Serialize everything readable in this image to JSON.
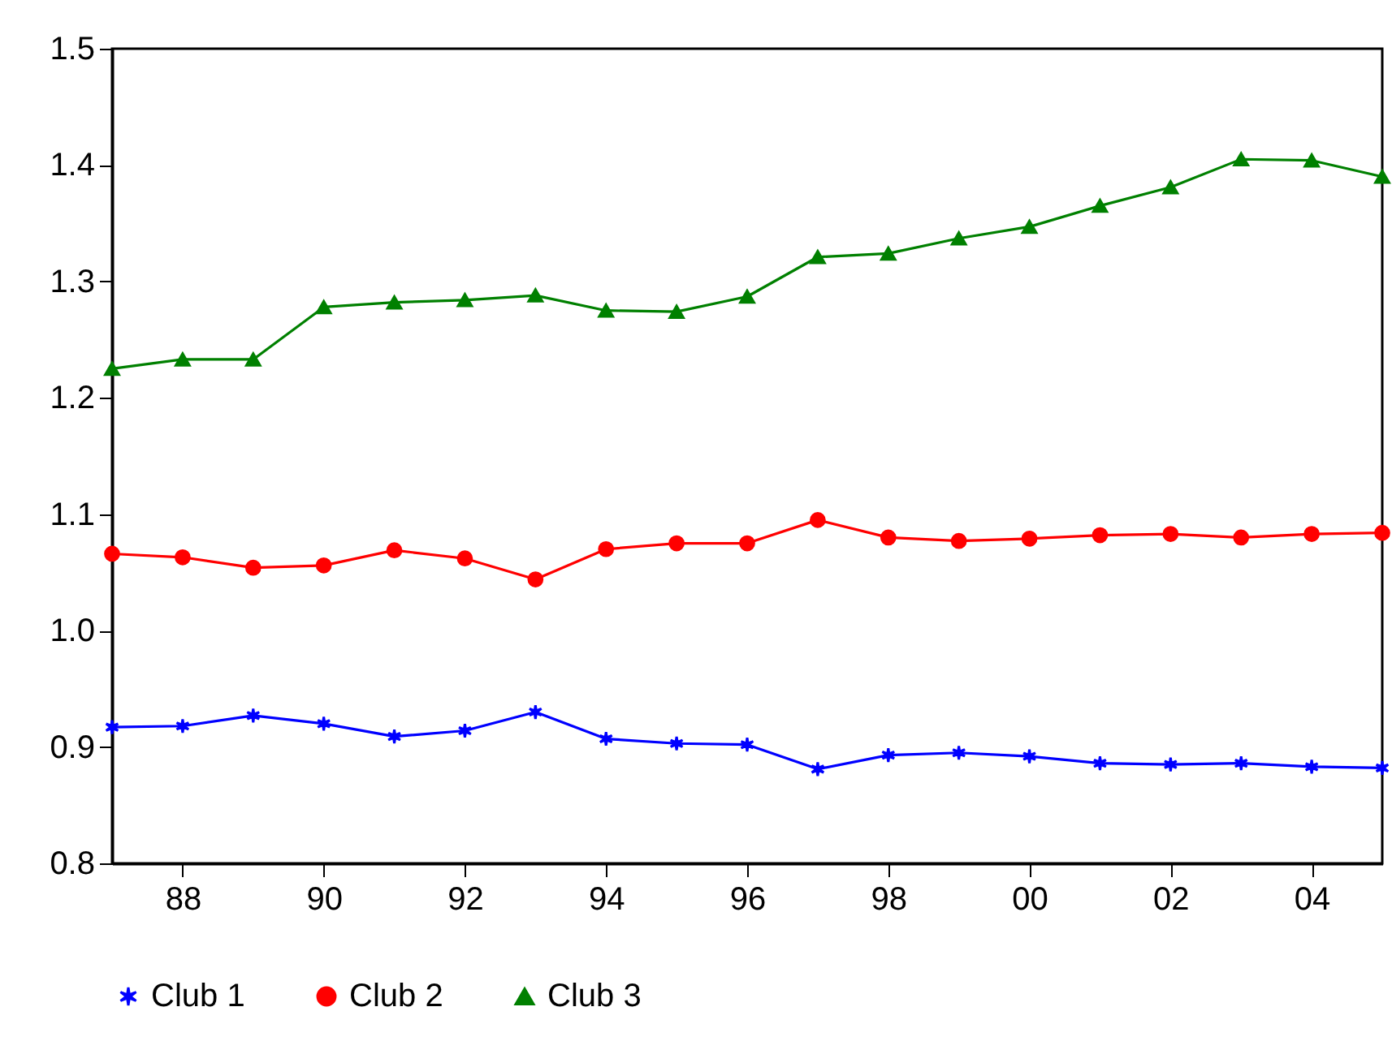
{
  "chart_data": {
    "type": "line",
    "x": [
      1987,
      1988,
      1989,
      1990,
      1991,
      1992,
      1993,
      1994,
      1995,
      1996,
      1997,
      1998,
      1999,
      2000,
      2001,
      2002,
      2003,
      2004,
      2005
    ],
    "series": [
      {
        "name": "Club 1",
        "color": "#0000ff",
        "marker": "cross",
        "values": [
          0.917,
          0.918,
          0.927,
          0.92,
          0.909,
          0.914,
          0.93,
          0.907,
          0.903,
          0.902,
          0.881,
          0.893,
          0.895,
          0.892,
          0.886,
          0.885,
          0.886,
          0.883,
          0.882
        ]
      },
      {
        "name": "Club 2",
        "color": "#ff0000",
        "marker": "circle",
        "values": [
          1.066,
          1.063,
          1.054,
          1.056,
          1.069,
          1.062,
          1.044,
          1.07,
          1.075,
          1.075,
          1.095,
          1.08,
          1.077,
          1.079,
          1.082,
          1.083,
          1.08,
          1.083,
          1.084
        ]
      },
      {
        "name": "Club 3",
        "color": "#008000",
        "marker": "triangle",
        "values": [
          1.225,
          1.233,
          1.233,
          1.278,
          1.282,
          1.284,
          1.288,
          1.275,
          1.274,
          1.287,
          1.321,
          1.324,
          1.337,
          1.347,
          1.365,
          1.381,
          1.405,
          1.404,
          1.39
        ]
      }
    ],
    "xlim": [
      1987,
      2005
    ],
    "xticks": [
      {
        "value": 1988,
        "label": "88"
      },
      {
        "value": 1990,
        "label": "90"
      },
      {
        "value": 1992,
        "label": "92"
      },
      {
        "value": 1994,
        "label": "94"
      },
      {
        "value": 1996,
        "label": "96"
      },
      {
        "value": 1998,
        "label": "98"
      },
      {
        "value": 2000,
        "label": "00"
      },
      {
        "value": 2002,
        "label": "02"
      },
      {
        "value": 2004,
        "label": "04"
      }
    ],
    "ylim": [
      0.8,
      1.5
    ],
    "yticks": [
      {
        "value": 0.8,
        "label": "0.8"
      },
      {
        "value": 0.9,
        "label": "0.9"
      },
      {
        "value": 1,
        "label": "1.0"
      },
      {
        "value": 1.1,
        "label": "1.1"
      },
      {
        "value": 1.2,
        "label": "1.2"
      },
      {
        "value": 1.3,
        "label": "1.3"
      },
      {
        "value": 1.4,
        "label": "1.4"
      },
      {
        "value": 1.5,
        "label": "1.5"
      }
    ],
    "grid": false,
    "legend": "bottom"
  }
}
